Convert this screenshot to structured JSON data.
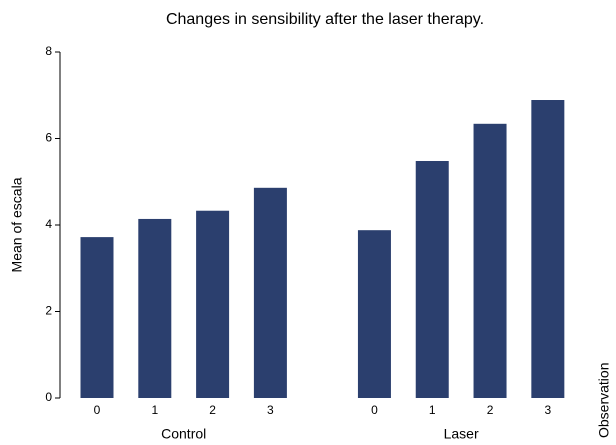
{
  "chart_data": {
    "type": "bar",
    "title": "Changes in sensibility after the laser therapy.",
    "y_label": "Mean of escala",
    "side_label": "Observation",
    "groups": [
      {
        "name": "Control",
        "categories": [
          "0",
          "1",
          "2",
          "3"
        ],
        "values": [
          3.72,
          4.14,
          4.33,
          4.86
        ]
      },
      {
        "name": "Laser",
        "categories": [
          "0",
          "1",
          "2",
          "3"
        ],
        "values": [
          3.88,
          5.48,
          6.34,
          6.89
        ]
      }
    ],
    "color": "#2b3f6e",
    "ylim": [
      0,
      8
    ],
    "yticks": [
      0,
      2,
      4,
      6,
      8
    ],
    "grid": false
  }
}
